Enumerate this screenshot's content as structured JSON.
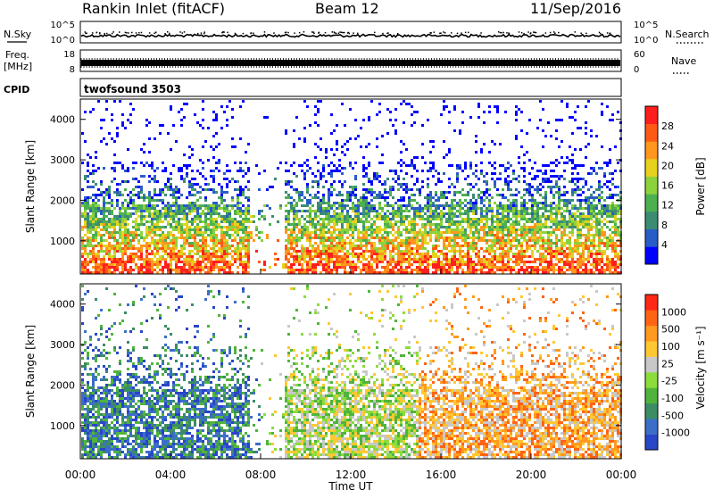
{
  "header": {
    "station": "Rankin Inlet (fitACF)",
    "beam": "Beam 12",
    "date": "11/Sep/2016"
  },
  "noise_panel": {
    "left_label": "N.Sky",
    "left_tick_top": "10^5",
    "left_tick_bottom": "10^0",
    "right_label": "N.Search",
    "right_tick_top": "10^5",
    "right_tick_bottom": "10^0"
  },
  "freq_panel": {
    "left_label_line1": "Freq.",
    "left_label_line2": "[MHz]",
    "left_tick_top": "18",
    "left_tick_bottom": "8",
    "right_label": "Nave",
    "right_tick_top": "60",
    "right_tick_bottom": "0"
  },
  "cpid_panel": {
    "label": "CPID",
    "value": "twofsound 3503"
  },
  "colors": {
    "power": [
      "#0000ff",
      "#2a5cc8",
      "#3c8c74",
      "#4cb050",
      "#8cd23c",
      "#e6d21e",
      "#ff961e",
      "#ff5a14",
      "#ff1e1e"
    ],
    "velocity": [
      "#2846c8",
      "#3c6ec8",
      "#3c8c64",
      "#50b43c",
      "#8cdc3c",
      "#c8c8c8",
      "#ffc832",
      "#ff9a1e",
      "#ff6414",
      "#ff2814"
    ]
  },
  "chart_data": [
    {
      "type": "heatmap",
      "name": "power",
      "xlabel": "",
      "ylabel": "Slant Range [km]",
      "y_ticks": [
        "4000",
        "3000",
        "2000",
        "1000"
      ],
      "y_tick_values": [
        4000,
        3000,
        2000,
        1000
      ],
      "ylim": [
        180,
        4500
      ],
      "x_range_hours": [
        0,
        24
      ],
      "colorbar_label": "Power [dB]",
      "colorbar_ticks": [
        "28",
        "24",
        "20",
        "16",
        "12",
        "8",
        "4"
      ],
      "colorbar_range": [
        0,
        30
      ]
    },
    {
      "type": "heatmap",
      "name": "velocity",
      "xlabel": "Time UT",
      "ylabel": "Slant Range [km]",
      "y_ticks": [
        "4000",
        "3000",
        "2000",
        "1000"
      ],
      "y_tick_values": [
        4000,
        3000,
        2000,
        1000
      ],
      "ylim": [
        180,
        4500
      ],
      "x_ticks": [
        "00:00",
        "04:00",
        "08:00",
        "12:00",
        "16:00",
        "20:00",
        "00:00"
      ],
      "x_tick_values": [
        0,
        4,
        8,
        12,
        16,
        20,
        24
      ],
      "colorbar_label": "Velocity [m s⁻¹]",
      "colorbar_ticks": [
        "1000",
        "500",
        "100",
        "25",
        "-25",
        "-100",
        "-500",
        "-1000"
      ]
    }
  ]
}
